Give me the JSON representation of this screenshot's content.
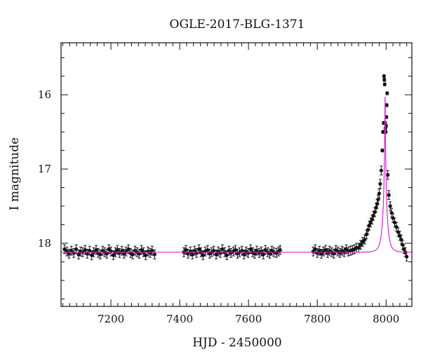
{
  "chart_data": {
    "type": "scatter",
    "title": "OGLE-2017-BLG-1371",
    "xlabel": "HJD - 2450000",
    "ylabel": "I magnitude",
    "xlim": [
      7055,
      8075
    ],
    "ylim": [
      18.85,
      15.3
    ],
    "y_inverted": true,
    "grid": false,
    "x_major_ticks": [
      7200,
      7400,
      7600,
      7800,
      8000
    ],
    "x_minor_step": 20,
    "y_major_ticks": [
      16,
      17,
      18
    ],
    "y_minor_step": 0.25,
    "tick_labels_x": [
      "7200",
      "7400",
      "7600",
      "7800",
      "8000"
    ],
    "tick_labels_y": [
      "16",
      "17",
      "18"
    ],
    "colors": {
      "data": "#111111",
      "model": "#e020e0",
      "axes": "#111111"
    },
    "baseline_magnitude": 18.12,
    "model": {
      "name": "",
      "type": "single-lens microlensing",
      "t0": 7997,
      "tE": 12,
      "u0": 0.05,
      "base_mag": 18.12,
      "peak_mag": 16.03
    },
    "series": [
      {
        "segment": 1,
        "points": [
          [
            7065,
            18.08
          ],
          [
            7072,
            18.11
          ],
          [
            7078,
            18.14
          ],
          [
            7085,
            18.1
          ],
          [
            7092,
            18.13
          ],
          [
            7099,
            18.08
          ],
          [
            7106,
            18.15
          ],
          [
            7112,
            18.11
          ],
          [
            7118,
            18.12
          ],
          [
            7125,
            18.09
          ],
          [
            7131,
            18.14
          ],
          [
            7138,
            18.1
          ],
          [
            7144,
            18.16
          ],
          [
            7150,
            18.12
          ],
          [
            7157,
            18.09
          ],
          [
            7163,
            18.13
          ],
          [
            7169,
            18.15
          ],
          [
            7176,
            18.1
          ],
          [
            7182,
            18.12
          ],
          [
            7188,
            18.14
          ],
          [
            7194,
            18.08
          ],
          [
            7200,
            18.11
          ],
          [
            7207,
            18.16
          ],
          [
            7213,
            18.12
          ],
          [
            7219,
            18.09
          ],
          [
            7225,
            18.13
          ],
          [
            7232,
            18.1
          ],
          [
            7238,
            18.14
          ],
          [
            7244,
            18.11
          ],
          [
            7251,
            18.08
          ],
          [
            7257,
            18.13
          ],
          [
            7263,
            18.15
          ],
          [
            7270,
            18.1
          ],
          [
            7276,
            18.12
          ],
          [
            7282,
            18.14
          ],
          [
            7289,
            18.09
          ],
          [
            7295,
            18.12
          ],
          [
            7301,
            18.16
          ],
          [
            7308,
            18.11
          ],
          [
            7314,
            18.13
          ],
          [
            7320,
            18.1
          ],
          [
            7327,
            18.15
          ]
        ]
      },
      {
        "segment": 2,
        "points": [
          [
            7412,
            18.12
          ],
          [
            7418,
            18.09
          ],
          [
            7424,
            18.14
          ],
          [
            7431,
            18.11
          ],
          [
            7437,
            18.15
          ],
          [
            7443,
            18.1
          ],
          [
            7449,
            18.13
          ],
          [
            7456,
            18.08
          ],
          [
            7462,
            18.12
          ],
          [
            7468,
            18.16
          ],
          [
            7474,
            18.11
          ],
          [
            7481,
            18.09
          ],
          [
            7487,
            18.14
          ],
          [
            7493,
            18.12
          ],
          [
            7499,
            18.1
          ],
          [
            7506,
            18.15
          ],
          [
            7512,
            18.11
          ],
          [
            7518,
            18.13
          ],
          [
            7524,
            18.08
          ],
          [
            7531,
            18.12
          ],
          [
            7537,
            18.16
          ],
          [
            7543,
            18.1
          ],
          [
            7549,
            18.13
          ],
          [
            7556,
            18.11
          ],
          [
            7562,
            18.09
          ],
          [
            7568,
            18.14
          ],
          [
            7574,
            18.12
          ],
          [
            7581,
            18.1
          ],
          [
            7587,
            18.15
          ],
          [
            7593,
            18.11
          ],
          [
            7599,
            18.13
          ],
          [
            7606,
            18.08
          ],
          [
            7612,
            18.12
          ],
          [
            7618,
            18.14
          ],
          [
            7624,
            18.1
          ],
          [
            7631,
            18.13
          ],
          [
            7637,
            18.11
          ],
          [
            7643,
            18.15
          ],
          [
            7649,
            18.09
          ],
          [
            7656,
            18.12
          ],
          [
            7662,
            18.14
          ],
          [
            7668,
            18.1
          ],
          [
            7674,
            18.12
          ],
          [
            7681,
            18.13
          ],
          [
            7687,
            18.11
          ],
          [
            7692,
            18.09
          ]
        ]
      },
      {
        "segment": 3,
        "points": [
          [
            7788,
            18.11
          ],
          [
            7794,
            18.08
          ],
          [
            7800,
            18.13
          ],
          [
            7806,
            18.1
          ],
          [
            7812,
            18.14
          ],
          [
            7818,
            18.11
          ],
          [
            7824,
            18.09
          ],
          [
            7830,
            18.13
          ],
          [
            7836,
            18.1
          ],
          [
            7842,
            18.12
          ],
          [
            7848,
            18.14
          ],
          [
            7854,
            18.09
          ],
          [
            7860,
            18.11
          ],
          [
            7866,
            18.13
          ],
          [
            7872,
            18.1
          ],
          [
            7878,
            18.12
          ],
          [
            7884,
            18.08
          ],
          [
            7890,
            18.11
          ],
          [
            7896,
            18.1
          ],
          [
            7902,
            18.09
          ],
          [
            7908,
            18.08
          ],
          [
            7914,
            18.06
          ],
          [
            7920,
            18.06
          ],
          [
            7926,
            18.02
          ],
          [
            7932,
            17.98
          ],
          [
            7938,
            17.95
          ],
          [
            7943,
            17.88
          ],
          [
            7947,
            17.82
          ],
          [
            7951,
            17.76
          ],
          [
            7955,
            17.72
          ],
          [
            7959,
            17.68
          ],
          [
            7963,
            17.63
          ],
          [
            7967,
            17.58
          ],
          [
            7971,
            17.52
          ],
          [
            7974,
            17.47
          ],
          [
            7977,
            17.41
          ],
          [
            7980,
            17.33
          ],
          [
            7983,
            17.2
          ],
          [
            7986,
            17.02
          ],
          [
            7989,
            16.75
          ],
          [
            7991,
            16.5
          ],
          [
            7993,
            16.38
          ],
          [
            7994,
            15.75
          ],
          [
            7995,
            15.8
          ],
          [
            7996,
            15.86
          ],
          [
            7997,
            16.38
          ],
          [
            7998,
            16.45
          ],
          [
            7999,
            16.5
          ],
          [
            8000,
            16.42
          ],
          [
            8001,
            16.3
          ],
          [
            8002,
            16.14
          ],
          [
            8003,
            15.98
          ],
          [
            8005,
            17.08
          ],
          [
            8008,
            17.35
          ],
          [
            8012,
            17.5
          ],
          [
            8016,
            17.59
          ],
          [
            8020,
            17.66
          ],
          [
            8025,
            17.72
          ],
          [
            8030,
            17.78
          ],
          [
            8035,
            17.85
          ],
          [
            8040,
            17.9
          ],
          [
            8044,
            17.95
          ],
          [
            8048,
            18.02
          ],
          [
            8052,
            18.08
          ],
          [
            8056,
            18.12
          ],
          [
            8060,
            18.18
          ]
        ]
      }
    ]
  }
}
